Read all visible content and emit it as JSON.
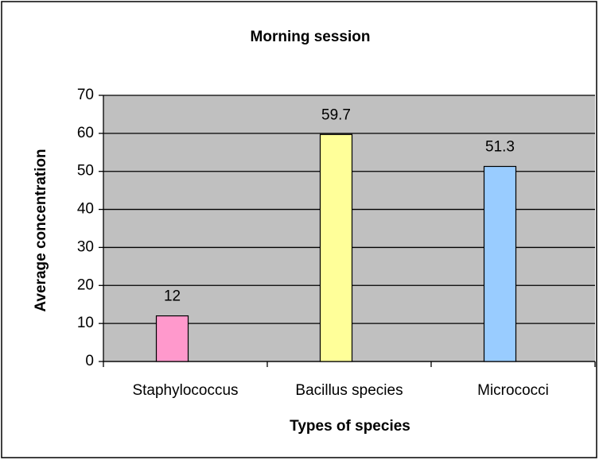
{
  "chart_data": {
    "type": "bar",
    "title": "Morning session",
    "x_label": "Types of species",
    "y_label": "Average concentration",
    "categories": [
      "Staphylococcus",
      "Bacillus species",
      "Micrococci"
    ],
    "values": [
      12,
      59.7,
      51.3
    ],
    "colors": [
      "#ff99cc",
      "#ffff99",
      "#99ccff"
    ],
    "ylim": [
      0,
      70
    ],
    "yticks": [
      0,
      10,
      20,
      30,
      40,
      50,
      60,
      70
    ],
    "grid": true
  }
}
